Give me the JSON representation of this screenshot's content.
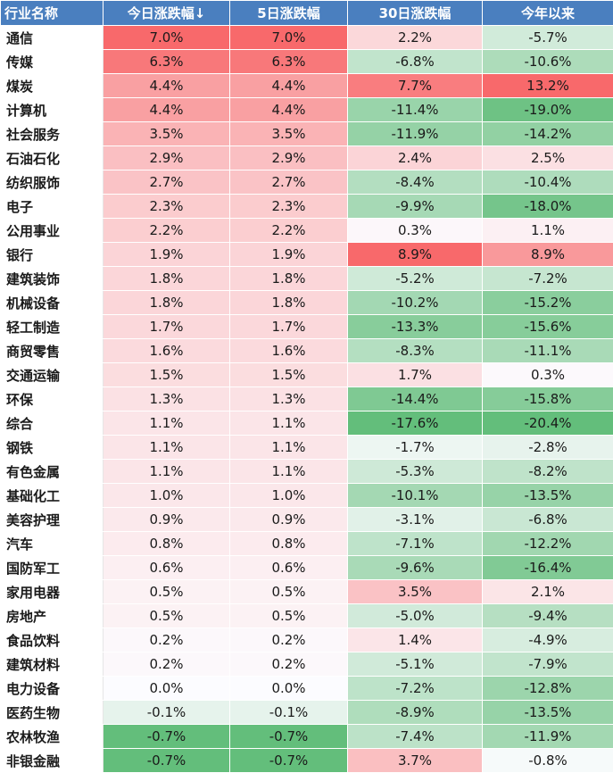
{
  "table": {
    "headers": [
      "行业名称",
      "今日涨跌幅↓",
      "5日涨跌幅",
      "30日涨跌幅",
      "今年以来"
    ],
    "rows": [
      {
        "name": "通信",
        "today": "7.0%",
        "d5": "7.0%",
        "d30": "2.2%",
        "ytd": "-5.7%"
      },
      {
        "name": "传媒",
        "today": "6.3%",
        "d5": "6.3%",
        "d30": "-6.8%",
        "ytd": "-10.6%"
      },
      {
        "name": "煤炭",
        "today": "4.4%",
        "d5": "4.4%",
        "d30": "7.7%",
        "ytd": "13.2%"
      },
      {
        "name": "计算机",
        "today": "4.4%",
        "d5": "4.4%",
        "d30": "-11.4%",
        "ytd": "-19.0%"
      },
      {
        "name": "社会服务",
        "today": "3.5%",
        "d5": "3.5%",
        "d30": "-11.9%",
        "ytd": "-14.2%"
      },
      {
        "name": "石油石化",
        "today": "2.9%",
        "d5": "2.9%",
        "d30": "2.4%",
        "ytd": "2.5%"
      },
      {
        "name": "纺织服饰",
        "today": "2.7%",
        "d5": "2.7%",
        "d30": "-8.4%",
        "ytd": "-10.4%"
      },
      {
        "name": "电子",
        "today": "2.3%",
        "d5": "2.3%",
        "d30": "-9.9%",
        "ytd": "-18.0%"
      },
      {
        "name": "公用事业",
        "today": "2.2%",
        "d5": "2.2%",
        "d30": "0.3%",
        "ytd": "1.1%"
      },
      {
        "name": "银行",
        "today": "1.9%",
        "d5": "1.9%",
        "d30": "8.9%",
        "ytd": "8.9%"
      },
      {
        "name": "建筑装饰",
        "today": "1.8%",
        "d5": "1.8%",
        "d30": "-5.2%",
        "ytd": "-7.2%"
      },
      {
        "name": "机械设备",
        "today": "1.8%",
        "d5": "1.8%",
        "d30": "-10.2%",
        "ytd": "-15.2%"
      },
      {
        "name": "轻工制造",
        "today": "1.7%",
        "d5": "1.7%",
        "d30": "-13.3%",
        "ytd": "-15.6%"
      },
      {
        "name": "商贸零售",
        "today": "1.6%",
        "d5": "1.6%",
        "d30": "-8.3%",
        "ytd": "-11.1%"
      },
      {
        "name": "交通运输",
        "today": "1.5%",
        "d5": "1.5%",
        "d30": "1.7%",
        "ytd": "0.3%"
      },
      {
        "name": "环保",
        "today": "1.3%",
        "d5": "1.3%",
        "d30": "-14.4%",
        "ytd": "-15.8%"
      },
      {
        "name": "综合",
        "today": "1.1%",
        "d5": "1.1%",
        "d30": "-17.6%",
        "ytd": "-20.4%"
      },
      {
        "name": "钢铁",
        "today": "1.1%",
        "d5": "1.1%",
        "d30": "-1.7%",
        "ytd": "-2.8%"
      },
      {
        "name": "有色金属",
        "today": "1.1%",
        "d5": "1.1%",
        "d30": "-5.3%",
        "ytd": "-8.2%"
      },
      {
        "name": "基础化工",
        "today": "1.0%",
        "d5": "1.0%",
        "d30": "-10.1%",
        "ytd": "-13.5%"
      },
      {
        "name": "美容护理",
        "today": "0.9%",
        "d5": "0.9%",
        "d30": "-3.1%",
        "ytd": "-6.8%"
      },
      {
        "name": "汽车",
        "today": "0.8%",
        "d5": "0.8%",
        "d30": "-7.1%",
        "ytd": "-12.2%"
      },
      {
        "name": "国防军工",
        "today": "0.6%",
        "d5": "0.6%",
        "d30": "-9.6%",
        "ytd": "-16.4%"
      },
      {
        "name": "家用电器",
        "today": "0.5%",
        "d5": "0.5%",
        "d30": "3.5%",
        "ytd": "2.1%"
      },
      {
        "name": "房地产",
        "today": "0.5%",
        "d5": "0.5%",
        "d30": "-5.0%",
        "ytd": "-9.4%"
      },
      {
        "name": "食品饮料",
        "today": "0.2%",
        "d5": "0.2%",
        "d30": "1.4%",
        "ytd": "-4.9%"
      },
      {
        "name": "建筑材料",
        "today": "0.2%",
        "d5": "0.2%",
        "d30": "-5.1%",
        "ytd": "-7.9%"
      },
      {
        "name": "电力设备",
        "today": "0.0%",
        "d5": "0.0%",
        "d30": "-7.2%",
        "ytd": "-12.8%"
      },
      {
        "name": "医药生物",
        "today": "-0.1%",
        "d5": "-0.1%",
        "d30": "-8.9%",
        "ytd": "-13.5%"
      },
      {
        "name": "农林牧渔",
        "today": "-0.7%",
        "d5": "-0.7%",
        "d30": "-7.4%",
        "ytd": "-11.9%"
      },
      {
        "name": "非银金融",
        "today": "-0.7%",
        "d5": "-0.7%",
        "d30": "3.7%",
        "ytd": "-0.8%"
      }
    ]
  },
  "colors": {
    "header_bg": "#4a7fbf",
    "header_text": "#ffffff",
    "positive_max": "#f8696b",
    "negative_max": "#63be7b",
    "neutral": "#fcfcff"
  }
}
